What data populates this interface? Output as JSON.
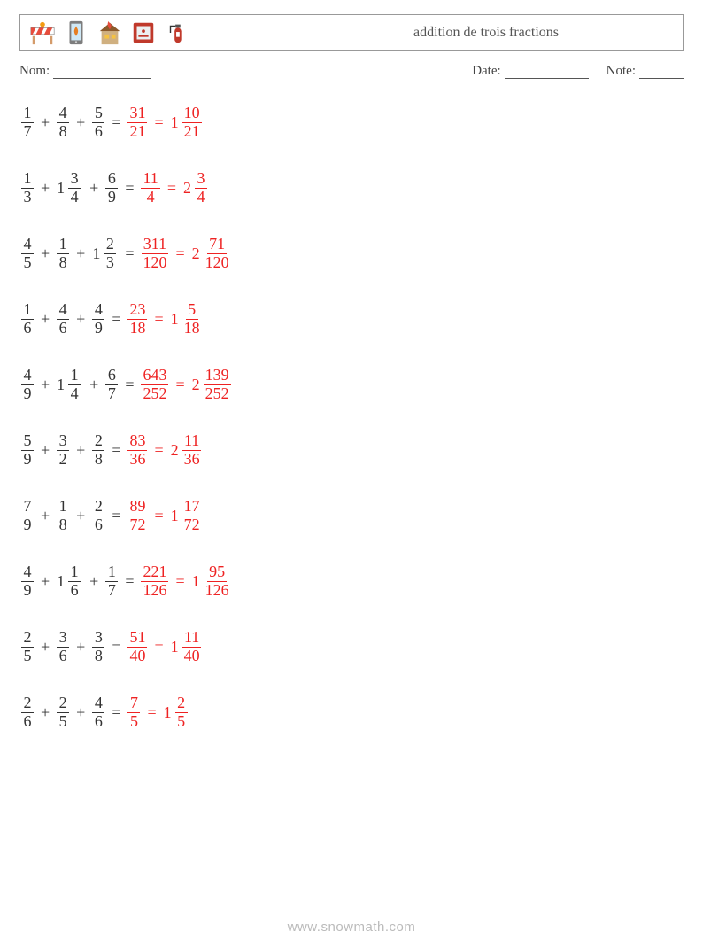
{
  "header": {
    "title": "addition de trois fractions"
  },
  "meta": {
    "name_label": "Nom:",
    "date_label": "Date:",
    "note_label": "Note:"
  },
  "icons": {
    "barrier_colors": {
      "stripe1": "#e74c3c",
      "stripe2": "#ffffff",
      "wood": "#d49b6a",
      "light": "#f39c12"
    },
    "phone_colors": {
      "body": "#7d7d7d",
      "screen": "#cfe8f5",
      "flame": "#e67e22"
    },
    "house_colors": {
      "roof": "#8b5a2b",
      "wall": "#d0b080",
      "window": "#f5c242",
      "fire": "#e74c3c"
    },
    "alarm_colors": {
      "frame": "#c0392b",
      "inner": "#ecf0f1",
      "text": "#c0392b"
    },
    "exting_colors": {
      "body": "#c0392b",
      "handle": "#555",
      "hose": "#333"
    }
  },
  "colors": {
    "text": "#333333",
    "answer": "#ee2222",
    "border": "#999999"
  },
  "problems": [
    {
      "terms": [
        {
          "type": "frac",
          "n": "1",
          "d": "7"
        },
        {
          "type": "frac",
          "n": "4",
          "d": "8"
        },
        {
          "type": "frac",
          "n": "5",
          "d": "6"
        }
      ],
      "answer_improper": {
        "n": "31",
        "d": "21"
      },
      "answer_mixed": {
        "w": "1",
        "n": "10",
        "d": "21"
      }
    },
    {
      "terms": [
        {
          "type": "frac",
          "n": "1",
          "d": "3"
        },
        {
          "type": "mixed",
          "w": "1",
          "n": "3",
          "d": "4"
        },
        {
          "type": "frac",
          "n": "6",
          "d": "9"
        }
      ],
      "answer_improper": {
        "n": "11",
        "d": "4"
      },
      "answer_mixed": {
        "w": "2",
        "n": "3",
        "d": "4"
      }
    },
    {
      "terms": [
        {
          "type": "frac",
          "n": "4",
          "d": "5"
        },
        {
          "type": "frac",
          "n": "1",
          "d": "8"
        },
        {
          "type": "mixed",
          "w": "1",
          "n": "2",
          "d": "3"
        }
      ],
      "answer_improper": {
        "n": "311",
        "d": "120"
      },
      "answer_mixed": {
        "w": "2",
        "n": "71",
        "d": "120"
      }
    },
    {
      "terms": [
        {
          "type": "frac",
          "n": "1",
          "d": "6"
        },
        {
          "type": "frac",
          "n": "4",
          "d": "6"
        },
        {
          "type": "frac",
          "n": "4",
          "d": "9"
        }
      ],
      "answer_improper": {
        "n": "23",
        "d": "18"
      },
      "answer_mixed": {
        "w": "1",
        "n": "5",
        "d": "18"
      }
    },
    {
      "terms": [
        {
          "type": "frac",
          "n": "4",
          "d": "9"
        },
        {
          "type": "mixed",
          "w": "1",
          "n": "1",
          "d": "4"
        },
        {
          "type": "frac",
          "n": "6",
          "d": "7"
        }
      ],
      "answer_improper": {
        "n": "643",
        "d": "252"
      },
      "answer_mixed": {
        "w": "2",
        "n": "139",
        "d": "252"
      }
    },
    {
      "terms": [
        {
          "type": "frac",
          "n": "5",
          "d": "9"
        },
        {
          "type": "frac",
          "n": "3",
          "d": "2"
        },
        {
          "type": "frac",
          "n": "2",
          "d": "8"
        }
      ],
      "answer_improper": {
        "n": "83",
        "d": "36"
      },
      "answer_mixed": {
        "w": "2",
        "n": "11",
        "d": "36"
      }
    },
    {
      "terms": [
        {
          "type": "frac",
          "n": "7",
          "d": "9"
        },
        {
          "type": "frac",
          "n": "1",
          "d": "8"
        },
        {
          "type": "frac",
          "n": "2",
          "d": "6"
        }
      ],
      "answer_improper": {
        "n": "89",
        "d": "72"
      },
      "answer_mixed": {
        "w": "1",
        "n": "17",
        "d": "72"
      }
    },
    {
      "terms": [
        {
          "type": "frac",
          "n": "4",
          "d": "9"
        },
        {
          "type": "mixed",
          "w": "1",
          "n": "1",
          "d": "6"
        },
        {
          "type": "frac",
          "n": "1",
          "d": "7"
        }
      ],
      "answer_improper": {
        "n": "221",
        "d": "126"
      },
      "answer_mixed": {
        "w": "1",
        "n": "95",
        "d": "126"
      }
    },
    {
      "terms": [
        {
          "type": "frac",
          "n": "2",
          "d": "5"
        },
        {
          "type": "frac",
          "n": "3",
          "d": "6"
        },
        {
          "type": "frac",
          "n": "3",
          "d": "8"
        }
      ],
      "answer_improper": {
        "n": "51",
        "d": "40"
      },
      "answer_mixed": {
        "w": "1",
        "n": "11",
        "d": "40"
      }
    },
    {
      "terms": [
        {
          "type": "frac",
          "n": "2",
          "d": "6"
        },
        {
          "type": "frac",
          "n": "2",
          "d": "5"
        },
        {
          "type": "frac",
          "n": "4",
          "d": "6"
        }
      ],
      "answer_improper": {
        "n": "7",
        "d": "5"
      },
      "answer_mixed": {
        "w": "1",
        "n": "2",
        "d": "5"
      }
    }
  ],
  "watermark": "www.snowmath.com"
}
